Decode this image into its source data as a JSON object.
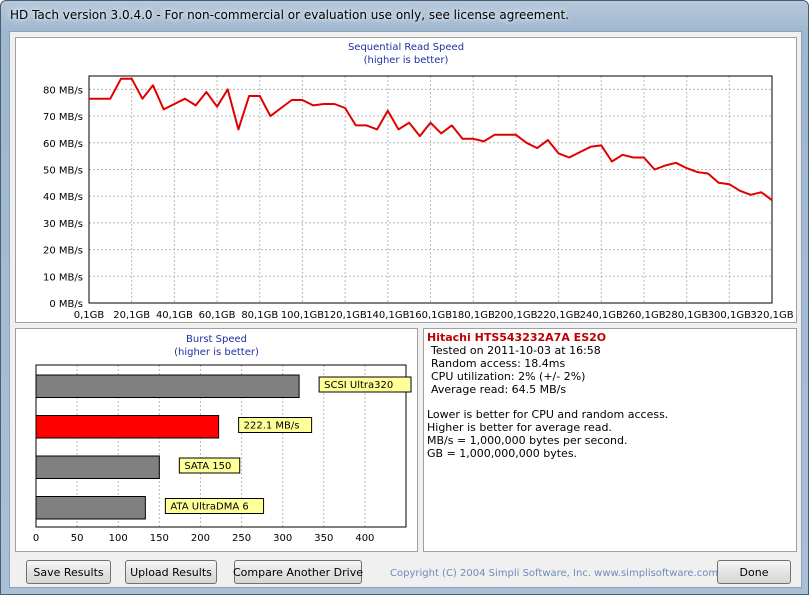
{
  "window": {
    "title": "HD Tach version 3.0.4.0  - For non-commercial or evaluation use only, see license agreement."
  },
  "sequential_chart": {
    "title_line1": "Sequential Read Speed",
    "title_line2": "(higher is better)"
  },
  "burst_chart": {
    "title_line1": "Burst Speed",
    "title_line2": "(higher is better)"
  },
  "info": {
    "drive_name": "Hitachi HTS543232A7A ES2O",
    "tested_on": "Tested on 2011-10-03 at 16:58",
    "random_access": "Random access: 18.4ms",
    "cpu_utilization": "CPU utilization: 2% (+/- 2%)",
    "average_read": "Average read: 64.5 MB/s",
    "note1": "Lower is better for CPU and random access.",
    "note2": "Higher is better for average read.",
    "note3": "MB/s = 1,000,000 bytes per second.",
    "note4": "GB = 1,000,000,000 bytes."
  },
  "buttons": {
    "save": "Save Results",
    "upload": "Upload Results",
    "compare": "Compare Another Drive",
    "done": "Done"
  },
  "copyright": "Copyright (C) 2004 Simpli Software, Inc. www.simplisoftware.com",
  "colors": {
    "series": "#e00000",
    "highlight_bar": "#ff0000",
    "reference_bar": "#808080",
    "label_bg": "#ffff99",
    "title_blue": "#1f2fa0",
    "drive_name": "#c00000"
  },
  "chart_data": [
    {
      "type": "line",
      "title": "Sequential Read Speed",
      "subtitle": "(higher is better)",
      "xlabel": "",
      "ylabel": "",
      "x_ticks": [
        "0,1GB",
        "20,1GB",
        "40,1GB",
        "60,1GB",
        "80,1GB",
        "100,1GB",
        "120,1GB",
        "140,1GB",
        "160,1GB",
        "180,1GB",
        "200,1GB",
        "220,1GB",
        "240,1GB",
        "260,1GB",
        "280,1GB",
        "300,1GB",
        "320,1GB"
      ],
      "y_ticks": [
        "0 MB/s",
        "10 MB/s",
        "20 MB/s",
        "30 MB/s",
        "40 MB/s",
        "50 MB/s",
        "60 MB/s",
        "70 MB/s",
        "80 MB/s"
      ],
      "xlim": [
        0,
        320
      ],
      "ylim": [
        0,
        85
      ],
      "grid": true,
      "series": [
        {
          "x": [
            0,
            5,
            10,
            15,
            20,
            25,
            30,
            35,
            40,
            45,
            50,
            55,
            60,
            65,
            70,
            75,
            80,
            85,
            90,
            95,
            100,
            105,
            110,
            115,
            120,
            125,
            130,
            135,
            140,
            145,
            150,
            155,
            160,
            165,
            170,
            175,
            180,
            185,
            190,
            195,
            200,
            205,
            210,
            215,
            220,
            225,
            230,
            235,
            240,
            245,
            250,
            255,
            260,
            265,
            270,
            275,
            280,
            285,
            290,
            295,
            300,
            305,
            310,
            315,
            320
          ],
          "y": [
            76.5,
            76.5,
            76.5,
            84,
            84,
            76.5,
            81.5,
            72.5,
            74.5,
            76.5,
            74,
            79,
            73.5,
            80,
            65,
            77.5,
            77.5,
            70,
            73,
            76,
            76,
            74,
            74.5,
            74.5,
            73,
            66.5,
            66.5,
            65,
            72,
            65,
            67.5,
            62.5,
            67.5,
            63.5,
            66.5,
            61.5,
            61.5,
            60.5,
            63,
            63,
            63,
            60,
            58,
            61,
            56,
            54.5,
            56.5,
            58.5,
            59,
            53,
            55.5,
            54.5,
            54.5,
            50,
            51.5,
            52.5,
            50.5,
            49,
            48.5,
            45,
            44.5,
            42,
            40.5,
            41.5,
            38.5
          ]
        }
      ]
    },
    {
      "type": "bar",
      "orientation": "horizontal",
      "title": "Burst Speed",
      "subtitle": "(higher is better)",
      "xlim": [
        0,
        450
      ],
      "x_ticks": [
        "0",
        "50",
        "100",
        "150",
        "200",
        "250",
        "300",
        "350",
        "400"
      ],
      "grid": true,
      "categories": [
        "SCSI Ultra320",
        "222.1 MB/s",
        "SATA 150",
        "ATA UltraDMA 6"
      ],
      "values": [
        320,
        222.1,
        150,
        133
      ],
      "highlight": [
        false,
        true,
        false,
        false
      ]
    }
  ]
}
